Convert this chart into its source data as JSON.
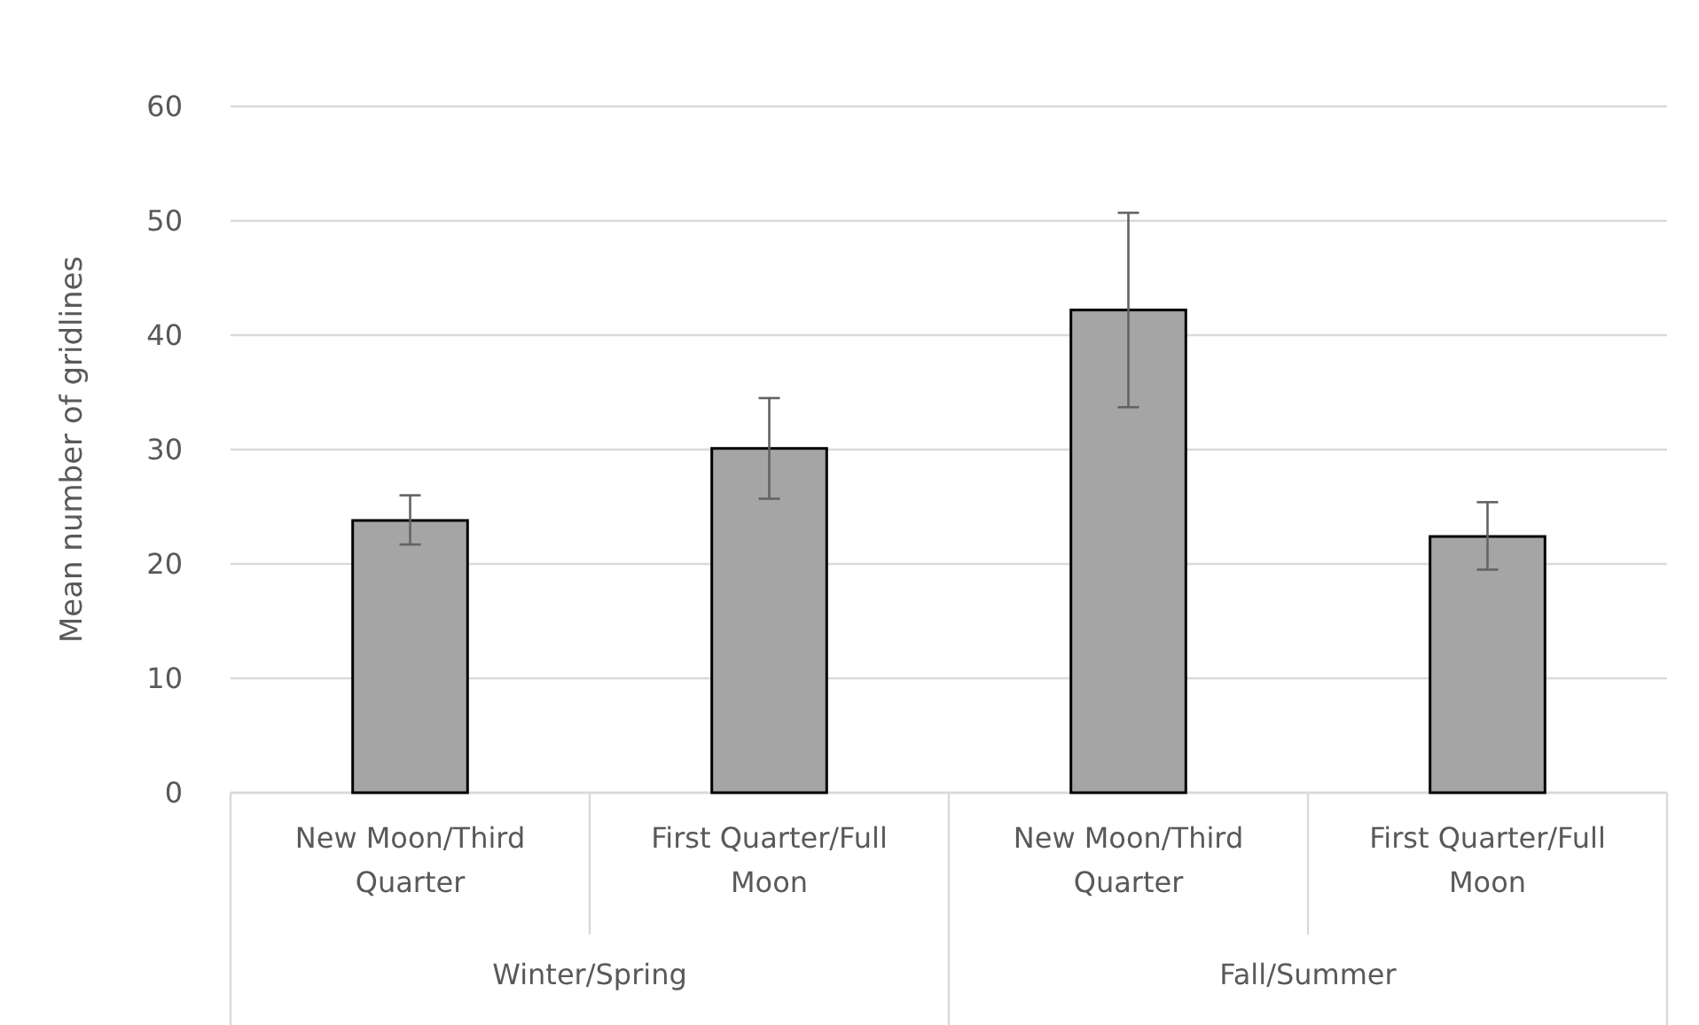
{
  "chart_data": {
    "type": "bar",
    "ylabel": "Mean number of gridlines",
    "categories": [
      "New Moon/Third Quarter",
      "First Quarter/Full Moon",
      "New Moon/Third Quarter",
      "First Quarter/Full Moon"
    ],
    "values": [
      23.8,
      30.1,
      42.2,
      22.4
    ],
    "errors": [
      [
        21.7,
        26.0
      ],
      [
        25.7,
        34.5
      ],
      [
        33.7,
        50.7
      ],
      [
        19.5,
        25.4
      ]
    ],
    "color": "#a5a5a5",
    "ylim": [
      0,
      60
    ],
    "yticks": [
      0,
      10,
      20,
      30,
      40,
      50,
      60
    ],
    "grid": "y",
    "annotations": [
      "Winter/Spring",
      "Fall/Summer"
    ]
  }
}
